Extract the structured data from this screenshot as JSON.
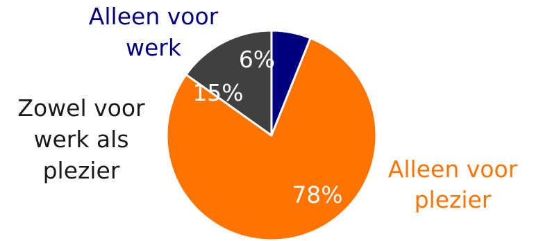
{
  "chart_data": {
    "type": "pie",
    "slices": [
      {
        "name": "Alleen voor werk",
        "label_lines": [
          "Alleen voor",
          "werk"
        ],
        "value": 6,
        "value_label": "6%",
        "color": "#000080",
        "label_color": "#000080"
      },
      {
        "name": "Alleen voor plezier",
        "label_lines": [
          "Alleen voor",
          "plezier"
        ],
        "value": 78,
        "value_label": "78%",
        "color": "#ff7300",
        "label_color": "#ff7300"
      },
      {
        "name": "Zowel voor werk als plezier",
        "label_lines": [
          "Zowel voor",
          "werk als",
          "plezier"
        ],
        "value": 15,
        "value_label": "15%",
        "color": "#404040",
        "label_color": "#1a1a1a"
      }
    ],
    "start_angle": "12 o'clock",
    "direction": "clockwise",
    "slice_border_color": "#ffffff"
  }
}
